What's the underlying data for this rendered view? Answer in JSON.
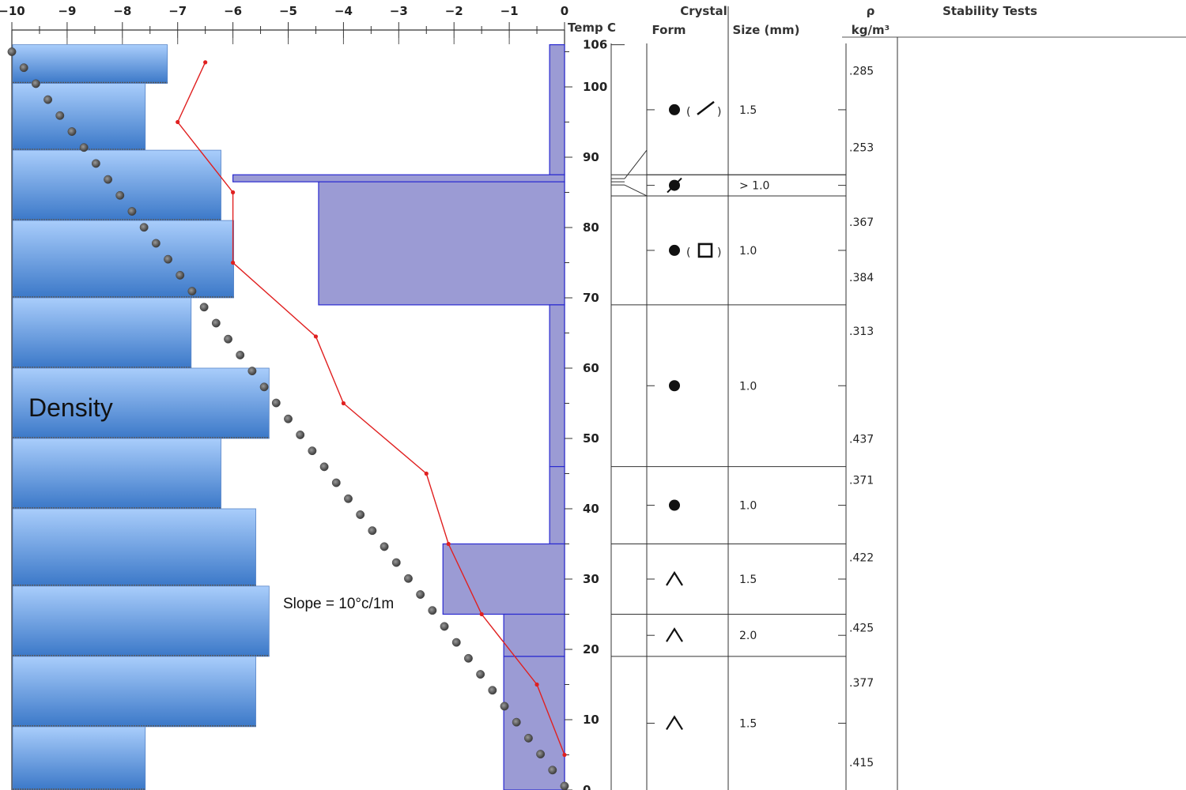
{
  "chart_data": {
    "type": "snow-profile",
    "temp_axis": {
      "label": "Temp C",
      "ticks": [
        -10,
        -9,
        -8,
        -7,
        -6,
        -5,
        -4,
        -3,
        -2,
        -1,
        0
      ],
      "tick_labels": [
        "−10",
        "−9",
        "−8",
        "−7",
        "−6",
        "−5",
        "−4",
        "−3",
        "−2",
        "−1",
        "0"
      ],
      "xlim": [
        -10,
        0
      ]
    },
    "height_axis": {
      "ticks": [
        0,
        10,
        20,
        30,
        40,
        50,
        60,
        70,
        80,
        90,
        100
      ],
      "tick_labels": [
        "0",
        "10",
        "20",
        "30",
        "40",
        "50",
        "60",
        "70",
        "80",
        "90",
        "100"
      ],
      "top_label": "106",
      "ylim": [
        0,
        106
      ]
    },
    "column_headers": {
      "crystal": "Crystal",
      "form": "Form",
      "size": "Size (mm)",
      "rho": "ρ",
      "rho_unit": "kg/m³",
      "stability": "Stability Tests"
    },
    "temperature_profile": {
      "color": "#e02020",
      "points": [
        {
          "h": 103.5,
          "t": -6.5
        },
        {
          "h": 95,
          "t": -7.0
        },
        {
          "h": 85,
          "t": -6.0
        },
        {
          "h": 75,
          "t": -6.0
        },
        {
          "h": 64.5,
          "t": -4.5
        },
        {
          "h": 55,
          "t": -4.0
        },
        {
          "h": 45,
          "t": -2.5
        },
        {
          "h": 35,
          "t": -2.1
        },
        {
          "h": 25,
          "t": -1.5
        },
        {
          "h": 15,
          "t": -0.5
        },
        {
          "h": 5,
          "t": 0.0
        }
      ]
    },
    "gradient_line": {
      "label": "Slope = 10°c/1m",
      "from": {
        "h": 105,
        "t": -10
      },
      "to": {
        "h": 0,
        "t": 0
      }
    },
    "hardness_profile": {
      "color": "#9b9bd4",
      "layers": [
        {
          "top": 106,
          "bottom": 87.5,
          "t_left": -0.27
        },
        {
          "top": 87.5,
          "bottom": 86.5,
          "t_left": -6.0
        },
        {
          "top": 86.5,
          "bottom": 69,
          "t_left": -4.45
        },
        {
          "top": 69,
          "bottom": 46,
          "t_left": -0.27
        },
        {
          "top": 46,
          "bottom": 35,
          "t_left": -0.27
        },
        {
          "top": 35,
          "bottom": 25,
          "t_left": -2.2
        },
        {
          "top": 25,
          "bottom": 19,
          "t_left": -1.1
        },
        {
          "top": 19,
          "bottom": 0,
          "t_left": -1.1
        }
      ]
    },
    "density_overlay": {
      "label": "Density",
      "color_top": "#a9cdfb",
      "color_bottom": "#3b78c8",
      "bars_value_fraction_of_width": [
        0.28,
        0.24,
        0.377,
        0.4,
        0.323,
        0.464,
        0.377,
        0.44,
        0.464,
        0.44,
        0.24
      ],
      "bar_tops_h": [
        106,
        100.5,
        91,
        81,
        70,
        60,
        50,
        40,
        29,
        19,
        9
      ]
    },
    "layers": [
      {
        "top": 106,
        "bottom": 87.5,
        "form": "round-facet",
        "size": "1.5",
        "density": [
          ".285",
          ".253"
        ]
      },
      {
        "top": 87.5,
        "bottom": 84.5,
        "form": "surface-hoar-crust",
        "size": "> 1.0",
        "density": []
      },
      {
        "top": 84.5,
        "bottom": 69,
        "form": "round-facet-box",
        "size": "1.0",
        "density": [
          ".367",
          ".384"
        ]
      },
      {
        "top": 69,
        "bottom": 46,
        "form": "round",
        "size": "1.0",
        "density": [
          ".313",
          ".437"
        ]
      },
      {
        "top": 46,
        "bottom": 35,
        "form": "round",
        "size": "1.0",
        "density": [
          ".371"
        ]
      },
      {
        "top": 35,
        "bottom": 25,
        "form": "depth-hoar",
        "size": "1.5",
        "density": [
          ".422"
        ]
      },
      {
        "top": 25,
        "bottom": 19,
        "form": "depth-hoar",
        "size": "2.0",
        "density": [
          ".425"
        ]
      },
      {
        "top": 19,
        "bottom": 0,
        "form": "depth-hoar",
        "size": "1.5",
        "density": [
          ".377",
          ".415"
        ]
      }
    ]
  }
}
